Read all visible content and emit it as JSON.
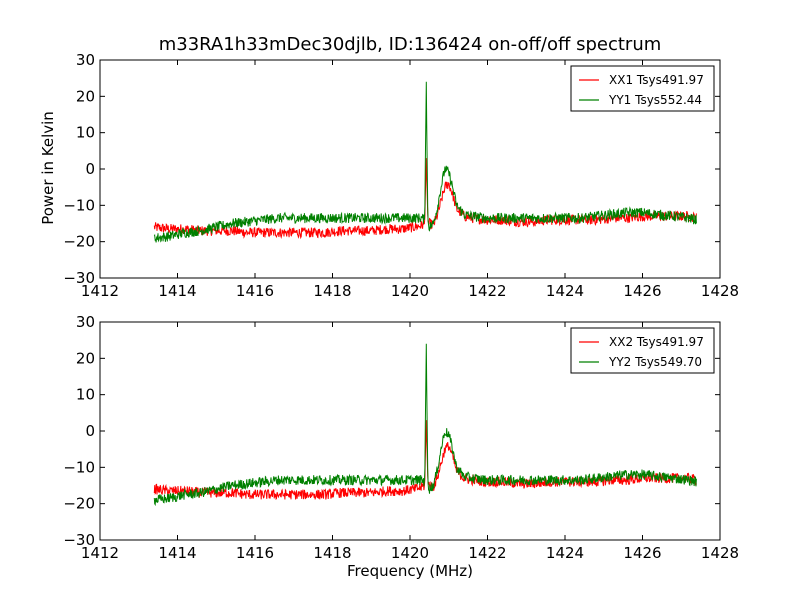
{
  "figure": {
    "title": "m33RA1h33mDec30djlb, ID:136424 on-off/off spectrum",
    "ylabel": "Power in Kelvin",
    "xlabel": "Frequency (MHz)"
  },
  "chart_data": [
    {
      "type": "line",
      "xlim": [
        1412,
        1428
      ],
      "ylim": [
        -30,
        30
      ],
      "xticks": [
        1412,
        1414,
        1416,
        1418,
        1420,
        1422,
        1424,
        1426,
        1428
      ],
      "yticks": [
        -30,
        -20,
        -10,
        0,
        10,
        20,
        30
      ],
      "xtick_labels": [
        "1412",
        "1414",
        "1416",
        "1418",
        "1420",
        "1422",
        "1424",
        "1426",
        "1428"
      ],
      "ytick_labels": [
        "−30",
        "−20",
        "−10",
        "0",
        "10",
        "20",
        "30"
      ],
      "legend_position": "top-right",
      "series": [
        {
          "name": "XX1 Tsys491.97",
          "color": "#ff0000",
          "x": [
            1413.4,
            1413.8,
            1414.2,
            1414.6,
            1415.0,
            1415.4,
            1415.8,
            1416.2,
            1416.6,
            1417.0,
            1417.4,
            1417.8,
            1418.2,
            1418.6,
            1419.0,
            1419.4,
            1419.8,
            1420.1,
            1420.3,
            1420.38,
            1420.42,
            1420.46,
            1420.5,
            1420.6,
            1420.7,
            1420.8,
            1420.9,
            1421.0,
            1421.1,
            1421.2,
            1421.4,
            1421.6,
            1422.0,
            1422.4,
            1422.8,
            1423.2,
            1423.6,
            1424.0,
            1424.4,
            1424.8,
            1425.2,
            1425.6,
            1426.0,
            1426.4,
            1426.8,
            1427.2,
            1427.4
          ],
          "y": [
            -16,
            -16.5,
            -16.5,
            -17,
            -17,
            -17,
            -17.5,
            -17.5,
            -17.5,
            -17.5,
            -17.5,
            -17.5,
            -17,
            -17,
            -17,
            -16.5,
            -16.5,
            -16,
            -15.5,
            -15,
            3,
            -14,
            -15,
            -15.5,
            -13,
            -9,
            -5,
            -4,
            -7,
            -11,
            -13,
            -13.5,
            -14,
            -14,
            -14.5,
            -14.5,
            -14,
            -14,
            -14,
            -14,
            -13.5,
            -13.5,
            -13,
            -13,
            -13,
            -13,
            -13.5
          ]
        },
        {
          "name": "YY1 Tsys552.44",
          "color": "#008000",
          "x": [
            1413.4,
            1413.8,
            1414.2,
            1414.6,
            1415.0,
            1415.4,
            1415.8,
            1416.2,
            1416.6,
            1417.0,
            1417.4,
            1417.8,
            1418.2,
            1418.6,
            1419.0,
            1419.4,
            1419.8,
            1420.1,
            1420.3,
            1420.38,
            1420.42,
            1420.46,
            1420.5,
            1420.6,
            1420.7,
            1420.8,
            1420.9,
            1421.0,
            1421.1,
            1421.2,
            1421.4,
            1421.6,
            1422.0,
            1422.4,
            1422.8,
            1423.2,
            1423.6,
            1424.0,
            1424.4,
            1424.8,
            1425.2,
            1425.6,
            1426.0,
            1426.4,
            1426.8,
            1427.2,
            1427.4
          ],
          "y": [
            -19,
            -18.5,
            -17.5,
            -17,
            -16,
            -15,
            -14.5,
            -14,
            -13.5,
            -13.5,
            -13.5,
            -13.5,
            -13.5,
            -13.5,
            -13.5,
            -13.5,
            -13.5,
            -13.5,
            -13.5,
            -14,
            24,
            -14,
            -16,
            -15,
            -11,
            -5,
            0,
            -1,
            -5,
            -10,
            -12.5,
            -13,
            -13.5,
            -13.5,
            -13.5,
            -13.5,
            -13.5,
            -13.5,
            -13.5,
            -13,
            -12.5,
            -12,
            -12,
            -12.5,
            -13,
            -13.5,
            -14
          ]
        }
      ]
    },
    {
      "type": "line",
      "xlim": [
        1412,
        1428
      ],
      "ylim": [
        -30,
        30
      ],
      "xticks": [
        1412,
        1414,
        1416,
        1418,
        1420,
        1422,
        1424,
        1426,
        1428
      ],
      "yticks": [
        -30,
        -20,
        -10,
        0,
        10,
        20,
        30
      ],
      "xtick_labels": [
        "1412",
        "1414",
        "1416",
        "1418",
        "1420",
        "1422",
        "1424",
        "1426",
        "1428"
      ],
      "ytick_labels": [
        "−30",
        "−20",
        "−10",
        "0",
        "10",
        "20",
        "30"
      ],
      "legend_position": "top-right",
      "series": [
        {
          "name": "XX2 Tsys491.97",
          "color": "#ff0000",
          "x": [
            1413.4,
            1413.8,
            1414.2,
            1414.6,
            1415.0,
            1415.4,
            1415.8,
            1416.2,
            1416.6,
            1417.0,
            1417.4,
            1417.8,
            1418.2,
            1418.6,
            1419.0,
            1419.4,
            1419.8,
            1420.1,
            1420.3,
            1420.38,
            1420.42,
            1420.46,
            1420.5,
            1420.6,
            1420.7,
            1420.8,
            1420.9,
            1421.0,
            1421.1,
            1421.2,
            1421.4,
            1421.6,
            1422.0,
            1422.4,
            1422.8,
            1423.2,
            1423.6,
            1424.0,
            1424.4,
            1424.8,
            1425.2,
            1425.6,
            1426.0,
            1426.4,
            1426.8,
            1427.2,
            1427.4
          ],
          "y": [
            -16,
            -16.5,
            -16.5,
            -17,
            -17,
            -17,
            -17.5,
            -17.5,
            -17.5,
            -17.5,
            -17.5,
            -17.5,
            -17,
            -17,
            -17,
            -16.5,
            -16.5,
            -16,
            -15.5,
            -15,
            3,
            -14,
            -15,
            -15.5,
            -13,
            -9,
            -5,
            -4,
            -7,
            -11,
            -13,
            -13.5,
            -14,
            -14,
            -14.5,
            -14.5,
            -14,
            -14,
            -14,
            -14,
            -13.5,
            -13.5,
            -13,
            -13,
            -13,
            -13,
            -13.5
          ]
        },
        {
          "name": "YY2 Tsys549.70",
          "color": "#008000",
          "x": [
            1413.4,
            1413.8,
            1414.2,
            1414.6,
            1415.0,
            1415.4,
            1415.8,
            1416.2,
            1416.6,
            1417.0,
            1417.4,
            1417.8,
            1418.2,
            1418.6,
            1419.0,
            1419.4,
            1419.8,
            1420.1,
            1420.3,
            1420.38,
            1420.42,
            1420.46,
            1420.5,
            1420.6,
            1420.7,
            1420.8,
            1420.9,
            1421.0,
            1421.1,
            1421.2,
            1421.4,
            1421.6,
            1422.0,
            1422.4,
            1422.8,
            1423.2,
            1423.6,
            1424.0,
            1424.4,
            1424.8,
            1425.2,
            1425.6,
            1426.0,
            1426.4,
            1426.8,
            1427.2,
            1427.4
          ],
          "y": [
            -19,
            -18.5,
            -17.5,
            -17,
            -16,
            -15,
            -14.5,
            -14,
            -13.5,
            -13.5,
            -13.5,
            -13.5,
            -13.5,
            -13.5,
            -13.5,
            -13.5,
            -13.5,
            -13.5,
            -13.5,
            -14,
            24,
            -14,
            -16,
            -15,
            -11,
            -5,
            0,
            -1,
            -5,
            -10,
            -12.5,
            -13,
            -13.5,
            -13.5,
            -13.5,
            -13.5,
            -13.5,
            -13.5,
            -13.5,
            -13,
            -12.5,
            -12,
            -12,
            -12.5,
            -13,
            -13.5,
            -14
          ]
        }
      ]
    }
  ]
}
